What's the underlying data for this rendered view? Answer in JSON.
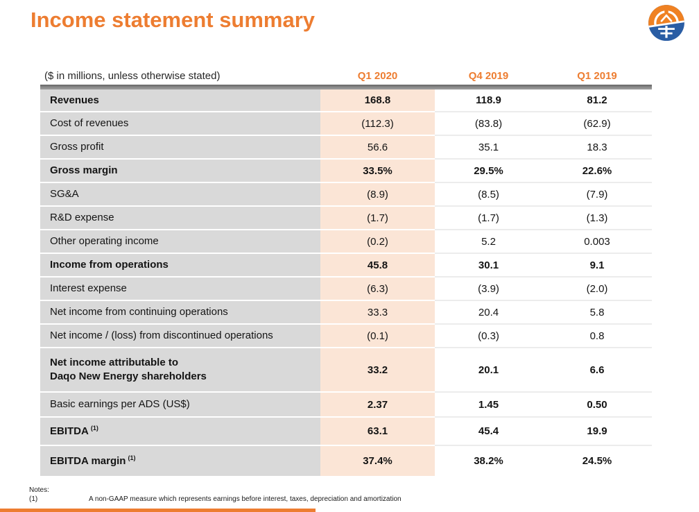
{
  "page": {
    "title": "Income statement summary"
  },
  "table": {
    "unit_label": "($ in millions, unless otherwise stated)",
    "columns": [
      "Q1 2020",
      "Q4 2019",
      "Q1 2019"
    ],
    "rows": [
      {
        "label": "Revenues",
        "values": [
          "168.8",
          "118.9",
          "81.2"
        ],
        "bold": true
      },
      {
        "label": "Cost of revenues",
        "values": [
          "(112.3)",
          "(83.8)",
          "(62.9)"
        ],
        "bold": false
      },
      {
        "label": "Gross profit",
        "values": [
          "56.6",
          "35.1",
          "18.3"
        ],
        "bold": false
      },
      {
        "label": "Gross margin",
        "values": [
          "33.5%",
          "29.5%",
          "22.6%"
        ],
        "bold": true
      },
      {
        "label": "SG&A",
        "values": [
          "(8.9)",
          "(8.5)",
          "(7.9)"
        ],
        "bold": false
      },
      {
        "label": "R&D expense",
        "values": [
          "(1.7)",
          "(1.7)",
          "(1.3)"
        ],
        "bold": false
      },
      {
        "label": "Other operating income",
        "values": [
          "(0.2)",
          "5.2",
          "0.003"
        ],
        "bold": false
      },
      {
        "label": "Income from operations",
        "values": [
          "45.8",
          "30.1",
          "9.1"
        ],
        "bold": true
      },
      {
        "label": "Interest expense",
        "values": [
          "(6.3)",
          "(3.9)",
          "(2.0)"
        ],
        "bold": false
      },
      {
        "label": "Net income from continuing operations",
        "values": [
          "33.3",
          "20.4",
          "5.8"
        ],
        "bold": false
      },
      {
        "label": "Net income / (loss) from discontinued operations",
        "values": [
          "(0.1)",
          "(0.3)",
          "0.8"
        ],
        "bold": false
      },
      {
        "label": "Net income attributable to",
        "label2": "Daqo New Energy shareholders",
        "values": [
          "33.2",
          "20.1",
          "6.6"
        ],
        "bold": true,
        "tall": true
      },
      {
        "label": "Basic earnings per ADS (US$)",
        "values": [
          "2.37",
          "1.45",
          "0.50"
        ],
        "bold": false,
        "values_bold": true
      },
      {
        "label": "EBITDA",
        "sup": "(1)",
        "values": [
          "63.1",
          "45.4",
          "19.9"
        ],
        "bold": true
      },
      {
        "label": "EBITDA margin",
        "sup": "(1)",
        "values": [
          "37.4%",
          "38.2%",
          "24.5%"
        ],
        "bold": true
      }
    ]
  },
  "notes": {
    "heading": "Notes:",
    "items": [
      {
        "marker": "(1)",
        "text": "A non-GAAP measure which represents earnings before interest, taxes, depreciation and amortization"
      }
    ]
  },
  "colors": {
    "accent_orange": "#ed7d31",
    "q1_2020_column_bg": "#fbe5d6",
    "label_column_bg": "#d9d9d9",
    "header_divider_gray": "#808080",
    "logo_orange": "#ef8122",
    "logo_blue": "#2a5da4"
  }
}
